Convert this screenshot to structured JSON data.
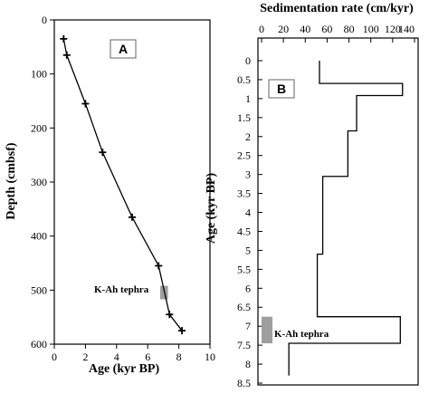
{
  "chart_data": [
    {
      "type": "line",
      "panel_label": "A",
      "xlabel": "Age (kyr BP)",
      "ylabel": "Depth (cmbsf)",
      "xlim": [
        0,
        10
      ],
      "ylim": [
        0,
        600
      ],
      "y_inverted": true,
      "x_ticks": [
        "0",
        "2",
        "4",
        "6",
        "8",
        "10"
      ],
      "y_ticks": [
        "0",
        "100",
        "200",
        "300",
        "400",
        "500",
        "600"
      ],
      "x": [
        0.6,
        0.8,
        2.0,
        3.1,
        5.0,
        6.7,
        7.4,
        8.2
      ],
      "y": [
        35,
        65,
        155,
        245,
        365,
        455,
        545,
        575
      ],
      "marker": "+",
      "annotation": {
        "text": "K-Ah tephra",
        "age_range": [
          6.8,
          7.3
        ],
        "depth_range": [
          492,
          517
        ],
        "color": "#9e9e9e"
      }
    },
    {
      "type": "line",
      "step": true,
      "panel_label": "B",
      "xlabel": "Sedimentation rate (cm/kyr)",
      "ylabel": "Age (kyr BP)",
      "xlim": [
        0,
        140
      ],
      "ylim": [
        0,
        8.5
      ],
      "y_inverted": true,
      "x_axis_position": "top",
      "x_ticks": [
        "0",
        "20",
        "40",
        "60",
        "80",
        "100",
        "120",
        "140"
      ],
      "y_ticks": [
        "0",
        "0.5",
        "1",
        "1.5",
        "2",
        "2.5",
        "3",
        "3.5",
        "4",
        "4.5",
        "5",
        "5.5",
        "6",
        "6.5",
        "7",
        "7.5",
        "8",
        "8.5"
      ],
      "x": [
        53,
        53,
        129,
        129,
        87,
        87,
        79,
        79,
        56,
        56,
        51,
        51,
        127,
        127,
        25,
        25
      ],
      "y": [
        0,
        0.6,
        0.6,
        0.92,
        0.92,
        1.85,
        1.85,
        3.05,
        3.05,
        5.1,
        5.1,
        6.75,
        6.75,
        7.45,
        7.45,
        8.3
      ],
      "annotation": {
        "text": "K-Ah tephra",
        "age_range": [
          6.75,
          7.45
        ],
        "rate_range": [
          0,
          10
        ],
        "color": "#9e9e9e"
      }
    }
  ]
}
